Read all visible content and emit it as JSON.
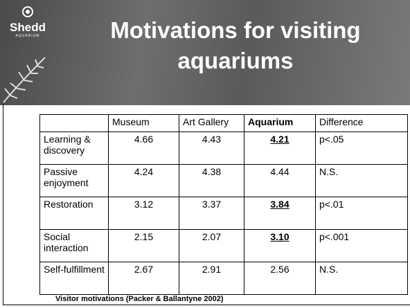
{
  "logo": {
    "name": "Shedd",
    "subtitle": "AQUARIUM"
  },
  "title": "Motivations for visiting aquariums",
  "table": {
    "header": [
      "",
      "Museum",
      "Art Gallery",
      "Aquarium",
      "Difference"
    ],
    "rows": [
      [
        "Learning & discovery",
        "4.66",
        "4.43",
        "4.21",
        "p<.05"
      ],
      [
        "Passive enjoyment",
        "4.24",
        "4.38",
        "4.44",
        "N.S."
      ],
      [
        "Restoration",
        "3.12",
        "3.37",
        "3.84",
        "p<.01"
      ],
      [
        "Social interaction",
        "2.15",
        "2.07",
        "3.10",
        "p<.001"
      ],
      [
        "Self-fulfillment",
        "2.67",
        "2.91",
        "2.56",
        "N.S."
      ]
    ]
  },
  "caption": "Visitor motivations (Packer & Ballantyne 2002)"
}
